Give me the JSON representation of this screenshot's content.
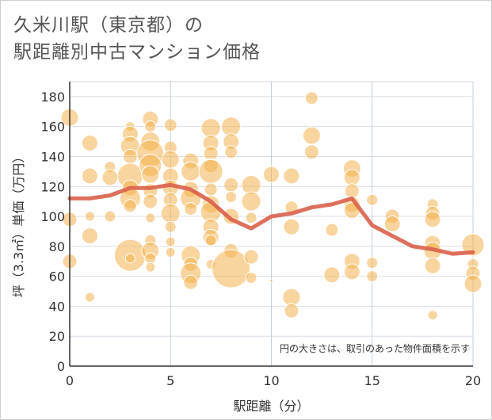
{
  "title": "久米川駅（東京都）の\n駅距離別中古マンション価格",
  "chart_data": {
    "type": "scatter",
    "xlabel": "駅距離（分）",
    "ylabel": "坪（3.3㎡）単価（万円）",
    "xlim": [
      0,
      20
    ],
    "ylim": [
      0,
      190
    ],
    "xticks": [
      0,
      5,
      10,
      15,
      20
    ],
    "yticks": [
      0,
      20,
      40,
      60,
      80,
      100,
      120,
      140,
      160,
      180
    ],
    "grid": true,
    "annotation": "円の大きさは、取引のあった物件面積を示す",
    "colors": {
      "bubble": "#f2b24e",
      "trend": "#d9604a"
    },
    "series": [
      {
        "type": "line",
        "x": [
          0,
          1,
          2,
          3,
          4,
          5,
          6,
          7,
          8,
          9,
          10,
          11,
          12,
          13,
          14,
          15,
          16,
          17,
          18,
          19,
          20
        ],
        "y": [
          112,
          112,
          114,
          119,
          119,
          121,
          118,
          110,
          98,
          92,
          100,
          102,
          106,
          108,
          112,
          94,
          87,
          80,
          78,
          75,
          76
        ]
      },
      {
        "type": "bubble",
        "points": [
          {
            "x": 0,
            "y": 166,
            "s": 11
          },
          {
            "x": 0,
            "y": 98,
            "s": 9
          },
          {
            "x": 0,
            "y": 70,
            "s": 9
          },
          {
            "x": 1,
            "y": 149,
            "s": 10
          },
          {
            "x": 1,
            "y": 127,
            "s": 10
          },
          {
            "x": 1,
            "y": 100,
            "s": 6
          },
          {
            "x": 1,
            "y": 87,
            "s": 10
          },
          {
            "x": 1,
            "y": 46,
            "s": 6
          },
          {
            "x": 2,
            "y": 133,
            "s": 7
          },
          {
            "x": 2,
            "y": 126,
            "s": 10
          },
          {
            "x": 2,
            "y": 100,
            "s": 7
          },
          {
            "x": 3,
            "y": 160,
            "s": 6
          },
          {
            "x": 3,
            "y": 155,
            "s": 10
          },
          {
            "x": 3,
            "y": 147,
            "s": 12
          },
          {
            "x": 3,
            "y": 140,
            "s": 9
          },
          {
            "x": 3,
            "y": 127,
            "s": 16
          },
          {
            "x": 3,
            "y": 119,
            "s": 10
          },
          {
            "x": 3,
            "y": 112,
            "s": 13
          },
          {
            "x": 3,
            "y": 107,
            "s": 8
          },
          {
            "x": 3,
            "y": 74,
            "s": 20
          },
          {
            "x": 3,
            "y": 72,
            "s": 6
          },
          {
            "x": 4,
            "y": 165,
            "s": 10
          },
          {
            "x": 4,
            "y": 160,
            "s": 7
          },
          {
            "x": 4,
            "y": 150,
            "s": 12
          },
          {
            "x": 4,
            "y": 142,
            "s": 17
          },
          {
            "x": 4,
            "y": 134,
            "s": 14
          },
          {
            "x": 4,
            "y": 128,
            "s": 11
          },
          {
            "x": 4,
            "y": 117,
            "s": 9
          },
          {
            "x": 4,
            "y": 110,
            "s": 9
          },
          {
            "x": 4,
            "y": 99,
            "s": 6
          },
          {
            "x": 4,
            "y": 84,
            "s": 7
          },
          {
            "x": 4,
            "y": 77,
            "s": 11
          },
          {
            "x": 4,
            "y": 72,
            "s": 7
          },
          {
            "x": 4,
            "y": 66,
            "s": 6
          },
          {
            "x": 5,
            "y": 161,
            "s": 8
          },
          {
            "x": 5,
            "y": 146,
            "s": 8
          },
          {
            "x": 5,
            "y": 138,
            "s": 11
          },
          {
            "x": 5,
            "y": 127,
            "s": 10
          },
          {
            "x": 5,
            "y": 119,
            "s": 10
          },
          {
            "x": 5,
            "y": 111,
            "s": 9
          },
          {
            "x": 5,
            "y": 102,
            "s": 12
          },
          {
            "x": 5,
            "y": 93,
            "s": 7
          },
          {
            "x": 5,
            "y": 83,
            "s": 6
          },
          {
            "x": 5,
            "y": 76,
            "s": 6
          },
          {
            "x": 6,
            "y": 137,
            "s": 10
          },
          {
            "x": 6,
            "y": 130,
            "s": 12
          },
          {
            "x": 6,
            "y": 118,
            "s": 10
          },
          {
            "x": 6,
            "y": 112,
            "s": 13
          },
          {
            "x": 6,
            "y": 105,
            "s": 8
          },
          {
            "x": 6,
            "y": 74,
            "s": 12
          },
          {
            "x": 6,
            "y": 68,
            "s": 9
          },
          {
            "x": 6,
            "y": 62,
            "s": 13
          },
          {
            "x": 6,
            "y": 56,
            "s": 9
          },
          {
            "x": 7,
            "y": 159,
            "s": 12
          },
          {
            "x": 7,
            "y": 149,
            "s": 10
          },
          {
            "x": 7,
            "y": 142,
            "s": 9
          },
          {
            "x": 7,
            "y": 134,
            "s": 9
          },
          {
            "x": 7,
            "y": 130,
            "s": 15
          },
          {
            "x": 7,
            "y": 118,
            "s": 8
          },
          {
            "x": 7,
            "y": 108,
            "s": 11
          },
          {
            "x": 7,
            "y": 103,
            "s": 13
          },
          {
            "x": 7,
            "y": 93,
            "s": 10
          },
          {
            "x": 7,
            "y": 86,
            "s": 10
          },
          {
            "x": 7,
            "y": 84,
            "s": 7
          },
          {
            "x": 7,
            "y": 68,
            "s": 6
          },
          {
            "x": 8,
            "y": 160,
            "s": 12
          },
          {
            "x": 8,
            "y": 150,
            "s": 10
          },
          {
            "x": 8,
            "y": 143,
            "s": 8
          },
          {
            "x": 8,
            "y": 121,
            "s": 9
          },
          {
            "x": 8,
            "y": 113,
            "s": 7
          },
          {
            "x": 8,
            "y": 100,
            "s": 10
          },
          {
            "x": 8,
            "y": 77,
            "s": 9
          },
          {
            "x": 8,
            "y": 65,
            "s": 24
          },
          {
            "x": 9,
            "y": 121,
            "s": 12
          },
          {
            "x": 9,
            "y": 110,
            "s": 12
          },
          {
            "x": 9,
            "y": 99,
            "s": 7
          },
          {
            "x": 9,
            "y": 73,
            "s": 9
          },
          {
            "x": 9,
            "y": 59,
            "s": 7
          },
          {
            "x": 10,
            "y": 128,
            "s": 10
          },
          {
            "x": 10,
            "y": 57,
            "s": 2
          },
          {
            "x": 11,
            "y": 127,
            "s": 10
          },
          {
            "x": 11,
            "y": 106,
            "s": 8
          },
          {
            "x": 11,
            "y": 93,
            "s": 10
          },
          {
            "x": 11,
            "y": 46,
            "s": 11
          },
          {
            "x": 11,
            "y": 37,
            "s": 9
          },
          {
            "x": 12,
            "y": 179,
            "s": 8
          },
          {
            "x": 12,
            "y": 154,
            "s": 11
          },
          {
            "x": 12,
            "y": 143,
            "s": 9
          },
          {
            "x": 13,
            "y": 91,
            "s": 8
          },
          {
            "x": 13,
            "y": 61,
            "s": 10
          },
          {
            "x": 14,
            "y": 132,
            "s": 11
          },
          {
            "x": 14,
            "y": 126,
            "s": 10
          },
          {
            "x": 14,
            "y": 117,
            "s": 9
          },
          {
            "x": 14,
            "y": 108,
            "s": 10
          },
          {
            "x": 14,
            "y": 104,
            "s": 10
          },
          {
            "x": 14,
            "y": 70,
            "s": 10
          },
          {
            "x": 14,
            "y": 63,
            "s": 10
          },
          {
            "x": 15,
            "y": 111,
            "s": 7
          },
          {
            "x": 15,
            "y": 69,
            "s": 7
          },
          {
            "x": 15,
            "y": 60,
            "s": 7
          },
          {
            "x": 16,
            "y": 100,
            "s": 9
          },
          {
            "x": 16,
            "y": 95,
            "s": 10
          },
          {
            "x": 18,
            "y": 108,
            "s": 7
          },
          {
            "x": 18,
            "y": 102,
            "s": 9
          },
          {
            "x": 18,
            "y": 98,
            "s": 10
          },
          {
            "x": 18,
            "y": 82,
            "s": 10
          },
          {
            "x": 18,
            "y": 77,
            "s": 11
          },
          {
            "x": 18,
            "y": 67,
            "s": 10
          },
          {
            "x": 18,
            "y": 34,
            "s": 6
          },
          {
            "x": 20,
            "y": 81,
            "s": 14
          },
          {
            "x": 20,
            "y": 68,
            "s": 7
          },
          {
            "x": 20,
            "y": 62,
            "s": 9
          },
          {
            "x": 20,
            "y": 55,
            "s": 11
          }
        ]
      }
    ]
  }
}
